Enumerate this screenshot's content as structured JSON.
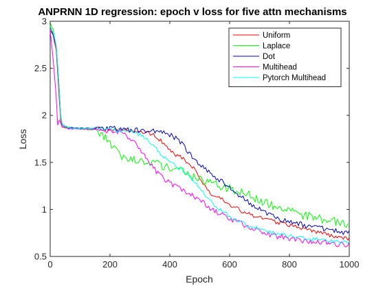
{
  "chart_data": {
    "type": "line",
    "title": "ANPRNN 1D regression: epoch v loss for five attn mechanisms",
    "xlabel": "Epoch",
    "ylabel": "Loss",
    "xlim": [
      0,
      1000
    ],
    "ylim": [
      0.5,
      3
    ],
    "x_ticks": [
      "0",
      "200",
      "400",
      "600",
      "800",
      "1000"
    ],
    "y_ticks": [
      "0.5",
      "1",
      "1.5",
      "2",
      "2.5",
      "3"
    ],
    "grid": false,
    "legend_position": "top-right",
    "series": [
      {
        "name": "Uniform",
        "color": "#ff0000",
        "x": [
          0,
          10,
          20,
          30,
          35,
          40,
          50,
          60,
          80,
          100,
          150,
          200,
          250,
          300,
          320,
          340,
          360,
          380,
          400,
          420,
          440,
          460,
          480,
          500,
          520,
          540,
          560,
          580,
          600,
          620,
          640,
          660,
          680,
          700,
          720,
          740,
          760,
          780,
          800,
          820,
          840,
          860,
          880,
          900,
          920,
          940,
          960,
          980,
          1000
        ],
        "values": [
          2.95,
          2.85,
          2.7,
          2.2,
          1.95,
          1.88,
          1.87,
          1.87,
          1.86,
          1.86,
          1.86,
          1.85,
          1.84,
          1.83,
          1.82,
          1.8,
          1.76,
          1.7,
          1.62,
          1.58,
          1.55,
          1.5,
          1.44,
          1.33,
          1.23,
          1.16,
          1.13,
          1.1,
          1.05,
          1.02,
          0.98,
          0.96,
          0.93,
          0.91,
          0.9,
          0.88,
          0.86,
          0.85,
          0.83,
          0.82,
          0.8,
          0.78,
          0.77,
          0.75,
          0.74,
          0.72,
          0.71,
          0.7,
          0.69
        ]
      },
      {
        "name": "Laplace",
        "color": "#00ff00",
        "x": [
          0,
          10,
          20,
          30,
          35,
          40,
          50,
          60,
          80,
          100,
          150,
          180,
          200,
          220,
          240,
          260,
          280,
          300,
          320,
          340,
          360,
          380,
          400,
          420,
          440,
          460,
          480,
          500,
          520,
          540,
          560,
          580,
          600,
          620,
          640,
          660,
          680,
          700,
          720,
          740,
          760,
          780,
          800,
          820,
          840,
          860,
          880,
          900,
          920,
          940,
          960,
          980,
          1000
        ],
        "values": [
          3.0,
          2.9,
          2.75,
          2.3,
          2.0,
          1.9,
          1.88,
          1.87,
          1.86,
          1.86,
          1.85,
          1.78,
          1.7,
          1.62,
          1.56,
          1.54,
          1.53,
          1.5,
          1.5,
          1.49,
          1.48,
          1.46,
          1.44,
          1.42,
          1.4,
          1.37,
          1.34,
          1.32,
          1.3,
          1.28,
          1.26,
          1.24,
          1.22,
          1.2,
          1.18,
          1.16,
          1.13,
          1.1,
          1.07,
          1.05,
          1.02,
          1.0,
          0.98,
          0.96,
          0.94,
          0.93,
          0.91,
          0.9,
          0.89,
          0.88,
          0.87,
          0.86,
          0.85
        ]
      },
      {
        "name": "Dot",
        "color": "#0000bb",
        "x": [
          0,
          10,
          20,
          30,
          35,
          40,
          50,
          60,
          80,
          100,
          150,
          200,
          250,
          300,
          350,
          380,
          400,
          420,
          440,
          460,
          480,
          500,
          520,
          540,
          560,
          580,
          600,
          620,
          640,
          660,
          680,
          700,
          720,
          740,
          760,
          780,
          800,
          820,
          840,
          860,
          880,
          900,
          920,
          940,
          960,
          980,
          1000
        ],
        "values": [
          2.9,
          2.85,
          2.75,
          2.3,
          2.0,
          1.9,
          1.88,
          1.87,
          1.86,
          1.86,
          1.86,
          1.86,
          1.85,
          1.84,
          1.83,
          1.81,
          1.79,
          1.76,
          1.7,
          1.62,
          1.55,
          1.48,
          1.42,
          1.37,
          1.33,
          1.28,
          1.23,
          1.18,
          1.13,
          1.08,
          1.04,
          1.0,
          0.97,
          0.94,
          0.91,
          0.89,
          0.87,
          0.85,
          0.84,
          0.82,
          0.81,
          0.8,
          0.79,
          0.78,
          0.77,
          0.76,
          0.75
        ]
      },
      {
        "name": "Multihead",
        "color": "#ff00ff",
        "x": [
          0,
          10,
          20,
          25,
          30,
          40,
          50,
          60,
          80,
          100,
          150,
          200,
          250,
          270,
          290,
          310,
          330,
          350,
          370,
          390,
          410,
          430,
          450,
          470,
          490,
          510,
          530,
          550,
          570,
          590,
          610,
          630,
          650,
          670,
          690,
          710,
          730,
          750,
          770,
          790,
          810,
          830,
          850,
          870,
          890,
          910,
          930,
          950,
          970,
          990,
          1000
        ],
        "values": [
          2.9,
          2.6,
          2.2,
          1.9,
          1.95,
          1.88,
          1.87,
          1.86,
          1.86,
          1.86,
          1.85,
          1.83,
          1.8,
          1.75,
          1.68,
          1.6,
          1.52,
          1.42,
          1.35,
          1.3,
          1.26,
          1.23,
          1.2,
          1.16,
          1.12,
          1.08,
          1.03,
          0.99,
          0.95,
          0.92,
          0.89,
          0.86,
          0.83,
          0.8,
          0.78,
          0.76,
          0.74,
          0.72,
          0.71,
          0.7,
          0.69,
          0.68,
          0.67,
          0.66,
          0.65,
          0.65,
          0.64,
          0.63,
          0.63,
          0.62,
          0.62
        ]
      },
      {
        "name": "Pytorch Multihead",
        "color": "#00ffff",
        "x": [
          0,
          10,
          20,
          30,
          35,
          40,
          50,
          60,
          80,
          100,
          150,
          200,
          250,
          300,
          320,
          340,
          360,
          380,
          400,
          420,
          440,
          460,
          480,
          500,
          520,
          540,
          560,
          580,
          600,
          620,
          640,
          660,
          680,
          700,
          720,
          740,
          760,
          780,
          800,
          820,
          840,
          860,
          880,
          900,
          920,
          940,
          960,
          980,
          1000
        ],
        "values": [
          2.95,
          2.88,
          2.75,
          2.3,
          2.0,
          1.9,
          1.88,
          1.87,
          1.86,
          1.86,
          1.86,
          1.85,
          1.83,
          1.8,
          1.75,
          1.7,
          1.62,
          1.55,
          1.5,
          1.46,
          1.42,
          1.37,
          1.3,
          1.22,
          1.15,
          1.08,
          1.02,
          0.97,
          0.93,
          0.89,
          0.86,
          0.83,
          0.81,
          0.79,
          0.77,
          0.75,
          0.74,
          0.73,
          0.72,
          0.71,
          0.7,
          0.69,
          0.68,
          0.68,
          0.67,
          0.66,
          0.66,
          0.65,
          0.64
        ]
      }
    ]
  }
}
